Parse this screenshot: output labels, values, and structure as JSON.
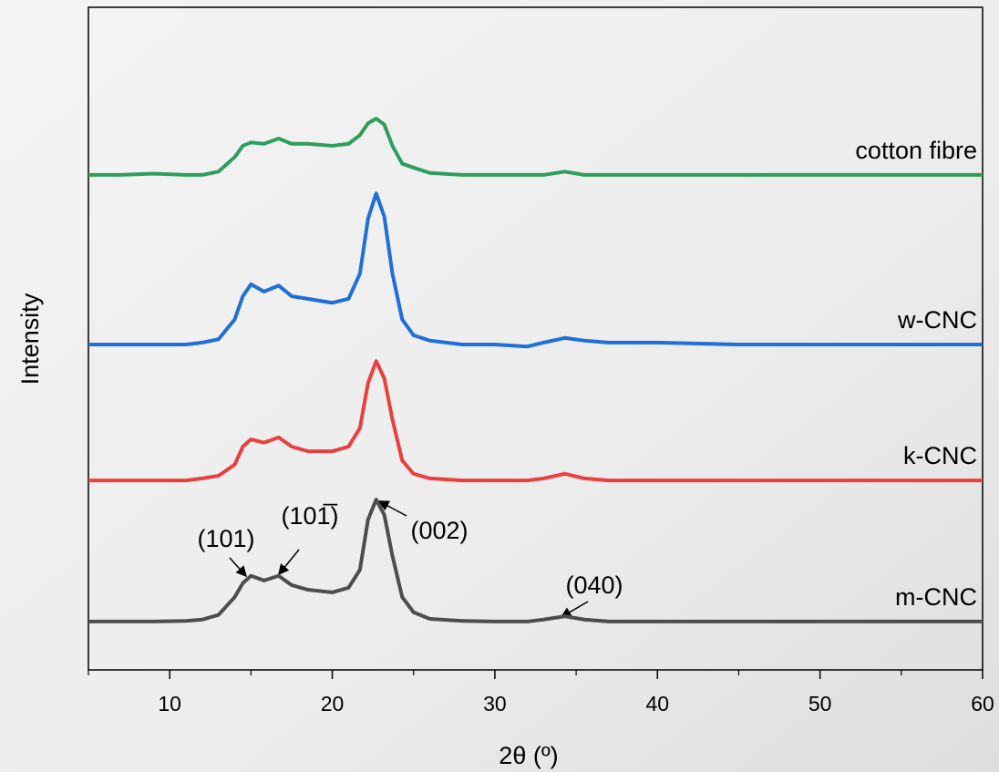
{
  "chart_data": {
    "type": "line",
    "xlabel": "2θ (º)",
    "ylabel": "Intensity",
    "xlim": [
      5,
      60
    ],
    "xticks": [
      10,
      20,
      30,
      40,
      50,
      60
    ],
    "ylim": [
      0,
      100
    ],
    "x": [
      5,
      7,
      9,
      11,
      12,
      13,
      14,
      14.5,
      15,
      15.8,
      16.7,
      17.5,
      18.5,
      20,
      21,
      21.7,
      22.2,
      22.7,
      23.2,
      23.7,
      24.3,
      25,
      26,
      28,
      30,
      32,
      33,
      34.3,
      35.5,
      37,
      40,
      45,
      50,
      55,
      60
    ],
    "series": [
      {
        "name": "m-CNC",
        "color": "#4d4d4d",
        "values": [
          7.3,
          7.3,
          7.3,
          7.4,
          7.6,
          8.3,
          11.0,
          13.1,
          14.2,
          13.5,
          14.2,
          12.8,
          12.1,
          11.7,
          12.4,
          15.1,
          22.7,
          25.7,
          23.4,
          17.2,
          11.0,
          8.7,
          7.7,
          7.4,
          7.3,
          7.3,
          7.6,
          8.1,
          7.6,
          7.3,
          7.3,
          7.3,
          7.3,
          7.3,
          7.3
        ]
      },
      {
        "name": "k-CNC",
        "color": "#e8403f",
        "values": [
          28.6,
          28.6,
          28.6,
          28.6,
          28.9,
          29.3,
          31.0,
          33.7,
          34.8,
          34.3,
          35.1,
          33.7,
          33.0,
          33.0,
          33.7,
          36.5,
          43.3,
          46.6,
          44.0,
          37.8,
          31.6,
          29.6,
          28.9,
          28.6,
          28.6,
          28.6,
          28.9,
          29.6,
          28.9,
          28.6,
          28.6,
          28.6,
          28.6,
          28.6,
          28.6
        ]
      },
      {
        "name": "w-CNC",
        "color": "#1f6fd6",
        "values": [
          49.1,
          49.1,
          49.1,
          49.1,
          49.4,
          49.9,
          52.9,
          56.4,
          58.2,
          57.1,
          58.0,
          56.4,
          56.0,
          55.4,
          56.0,
          59.8,
          68.1,
          71.9,
          68.4,
          59.8,
          52.9,
          50.5,
          49.7,
          49.1,
          49.1,
          48.8,
          49.4,
          50.1,
          49.7,
          49.4,
          49.4,
          49.1,
          49.1,
          49.1,
          49.1
        ]
      },
      {
        "name": "cotton fibre",
        "color": "#2e9e5b",
        "values": [
          74.7,
          74.7,
          74.9,
          74.7,
          74.7,
          75.2,
          77.4,
          79.1,
          79.6,
          79.4,
          80.2,
          79.4,
          79.4,
          79.1,
          79.4,
          80.7,
          82.5,
          83.2,
          82.3,
          79.1,
          76.4,
          75.8,
          75.0,
          74.7,
          74.7,
          74.7,
          74.7,
          75.2,
          74.7,
          74.7,
          74.7,
          74.7,
          74.7,
          74.7,
          74.7
        ]
      }
    ],
    "annotations": [
      "(101)",
      "(101̅)",
      "(002)",
      "(040)"
    ]
  }
}
